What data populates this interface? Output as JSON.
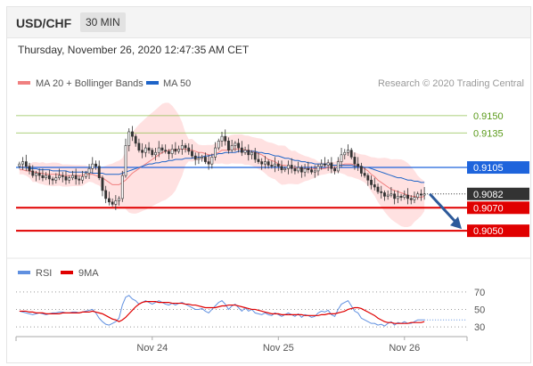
{
  "header": {
    "symbol": "USD/CHF",
    "timeframe": "30 MIN"
  },
  "datetime": "Thursday, November 26, 2020 12:47:35 AM CET",
  "legend": {
    "ma20": "MA 20 + Bollinger Bands",
    "ma50": "MA 50",
    "credit": "Research © 2020 Trading Central",
    "rsi": "RSI",
    "rsi_ma": "9MA"
  },
  "colors": {
    "ma20": "#f08080",
    "ma50": "#1e64c8",
    "bollinger_fill": "#ffdcdc",
    "resistance": "#90c050",
    "pivot": "#1e64dc",
    "support": "#e00000",
    "last_price_bg": "#333333",
    "arrow": "#2d5a9a",
    "rsi": "#6090e0",
    "rsi_ma": "#e00000"
  },
  "chart_data": [
    {
      "type": "candlestick",
      "title": "USD/CHF",
      "ylim": [
        9030,
        9170
      ],
      "x_ticks": [
        "Nov 24",
        "Nov 25",
        "Nov 26"
      ],
      "levels": [
        {
          "label": "0.9150",
          "value": 9150,
          "kind": "resistance"
        },
        {
          "label": "0.9135",
          "value": 9135,
          "kind": "resistance"
        },
        {
          "label": "0.9105",
          "value": 9105,
          "kind": "pivot"
        },
        {
          "label": "0.9082",
          "value": 9082,
          "kind": "last"
        },
        {
          "label": "0.9070",
          "value": 9070,
          "kind": "support"
        },
        {
          "label": "0.9050",
          "value": 9050,
          "kind": "support"
        }
      ],
      "close": [
        9108,
        9110,
        9106,
        9102,
        9098,
        9100,
        9098,
        9096,
        9098,
        9095,
        9094,
        9096,
        9098,
        9097,
        9094,
        9096,
        9098,
        9095,
        9094,
        9097,
        9100,
        9104,
        9108,
        9106,
        9096,
        9085,
        9078,
        9075,
        9073,
        9076,
        9078,
        9098,
        9124,
        9136,
        9132,
        9126,
        9120,
        9118,
        9122,
        9120,
        9116,
        9118,
        9122,
        9120,
        9119,
        9117,
        9121,
        9119,
        9121,
        9124,
        9122,
        9119,
        9115,
        9112,
        9113,
        9114,
        9110,
        9108,
        9114,
        9122,
        9128,
        9132,
        9128,
        9120,
        9124,
        9126,
        9122,
        9118,
        9120,
        9116,
        9118,
        9112,
        9110,
        9108,
        9110,
        9107,
        9106,
        9108,
        9106,
        9103,
        9104,
        9107,
        9104,
        9102,
        9105,
        9101,
        9104,
        9103,
        9101,
        9102,
        9106,
        9108,
        9107,
        9109,
        9104,
        9102,
        9110,
        9116,
        9118,
        9120,
        9114,
        9108,
        9106,
        9100,
        9098,
        9094,
        9090,
        9088,
        9084,
        9083,
        9080,
        9081,
        9082,
        9078,
        9080,
        9079,
        9081,
        9078,
        9077,
        9079,
        9082,
        9081,
        9082
      ],
      "ma20": [
        9103,
        9103,
        9102,
        9102,
        9101,
        9101,
        9100,
        9100,
        9099,
        9099,
        9099,
        9099,
        9099,
        9098,
        9098,
        9098,
        9098,
        9098,
        9098,
        9098,
        9099,
        9099,
        9099,
        9098,
        9097,
        9096,
        9094,
        9092,
        9090,
        9090,
        9090,
        9092,
        9094,
        9097,
        9100,
        9102,
        9104,
        9106,
        9108,
        9110,
        9112,
        9114,
        9116,
        9118,
        9119,
        9120,
        9120,
        9120,
        9121,
        9121,
        9121,
        9120,
        9120,
        9119,
        9118,
        9118,
        9117,
        9116,
        9116,
        9117,
        9118,
        9120,
        9120,
        9120,
        9121,
        9121,
        9121,
        9121,
        9120,
        9120,
        9119,
        9118,
        9117,
        9116,
        9114,
        9112,
        9111,
        9110,
        9108,
        9107,
        9107,
        9106,
        9105,
        9105,
        9104,
        9104,
        9104,
        9104,
        9104,
        9104,
        9104,
        9104,
        9104,
        9105,
        9105,
        9105,
        9106,
        9107,
        9108,
        9108,
        9108,
        9107,
        9106,
        9105,
        9104,
        9102,
        9099,
        9097,
        9094,
        9092,
        9090,
        9088,
        9086,
        9085,
        9084,
        9083,
        9082,
        9081,
        9080,
        9080,
        9079,
        9079,
        9080
      ],
      "ma50": [
        9105,
        9105,
        9105,
        9104,
        9104,
        9104,
        9103,
        9103,
        9103,
        9103,
        9102,
        9102,
        9102,
        9102,
        9102,
        9101,
        9101,
        9101,
        9101,
        9101,
        9101,
        9101,
        9100,
        9100,
        9100,
        9100,
        9099,
        9099,
        9099,
        9099,
        9099,
        9100,
        9101,
        9102,
        9103,
        9104,
        9105,
        9106,
        9107,
        9108,
        9108,
        9109,
        9109,
        9110,
        9110,
        9111,
        9111,
        9112,
        9112,
        9112,
        9113,
        9113,
        9113,
        9114,
        9114,
        9114,
        9115,
        9115,
        9116,
        9116,
        9117,
        9117,
        9118,
        9118,
        9118,
        9118,
        9119,
        9119,
        9119,
        9119,
        9119,
        9119,
        9118,
        9118,
        9117,
        9117,
        9116,
        9115,
        9115,
        9114,
        9113,
        9113,
        9112,
        9111,
        9111,
        9110,
        9110,
        9109,
        9109,
        9108,
        9108,
        9108,
        9108,
        9108,
        9107,
        9107,
        9107,
        9107,
        9107,
        9107,
        9107,
        9106,
        9106,
        9106,
        9105,
        9105,
        9104,
        9103,
        9102,
        9101,
        9100,
        9099,
        9098,
        9097,
        9096,
        9096,
        9095,
        9094,
        9094,
        9093,
        9093,
        9092,
        9092
      ]
    },
    {
      "type": "line",
      "title": "RSI",
      "ylim": [
        25,
        80
      ],
      "y_ticks": [
        70,
        50,
        30
      ],
      "series": [
        {
          "name": "RSI",
          "values": [
            48,
            47,
            46,
            45,
            44,
            45,
            46,
            45,
            44,
            45,
            46,
            46,
            47,
            47,
            46,
            46,
            47,
            47,
            46,
            47,
            48,
            49,
            50,
            46,
            40,
            36,
            33,
            32,
            34,
            36,
            40,
            55,
            64,
            66,
            62,
            60,
            56,
            58,
            60,
            58,
            56,
            58,
            60,
            58,
            56,
            55,
            57,
            55,
            57,
            58,
            56,
            54,
            52,
            50,
            50,
            51,
            48,
            46,
            50,
            54,
            58,
            60,
            56,
            50,
            54,
            56,
            52,
            48,
            52,
            48,
            50,
            46,
            45,
            44,
            46,
            44,
            43,
            46,
            44,
            42,
            44,
            46,
            44,
            42,
            45,
            41,
            44,
            43,
            41,
            42,
            46,
            48,
            47,
            49,
            44,
            42,
            50,
            56,
            58,
            60,
            54,
            48,
            46,
            40,
            38,
            36,
            34,
            34,
            32,
            33,
            31,
            34,
            36,
            32,
            35,
            34,
            36,
            34,
            34,
            36,
            38,
            38,
            38
          ]
        },
        {
          "name": "9MA",
          "values": [
            48,
            48,
            48,
            47,
            47,
            46,
            46,
            46,
            45,
            45,
            45,
            45,
            45,
            46,
            46,
            46,
            46,
            46,
            46,
            47,
            47,
            47,
            48,
            47,
            46,
            45,
            43,
            41,
            39,
            38,
            36,
            38,
            41,
            45,
            49,
            53,
            56,
            58,
            59,
            59,
            59,
            59,
            58,
            58,
            58,
            58,
            57,
            57,
            57,
            57,
            56,
            56,
            55,
            55,
            54,
            53,
            52,
            52,
            52,
            52,
            53,
            54,
            54,
            55,
            55,
            55,
            54,
            53,
            52,
            51,
            50,
            50,
            49,
            48,
            47,
            46,
            45,
            45,
            45,
            44,
            44,
            44,
            44,
            44,
            44,
            44,
            43,
            43,
            43,
            43,
            43,
            44,
            44,
            45,
            45,
            45,
            46,
            47,
            48,
            50,
            51,
            52,
            52,
            51,
            49,
            47,
            45,
            43,
            40,
            38,
            36,
            35,
            35,
            34,
            34,
            34,
            34,
            34,
            35,
            35,
            35,
            35,
            36
          ]
        }
      ]
    }
  ]
}
